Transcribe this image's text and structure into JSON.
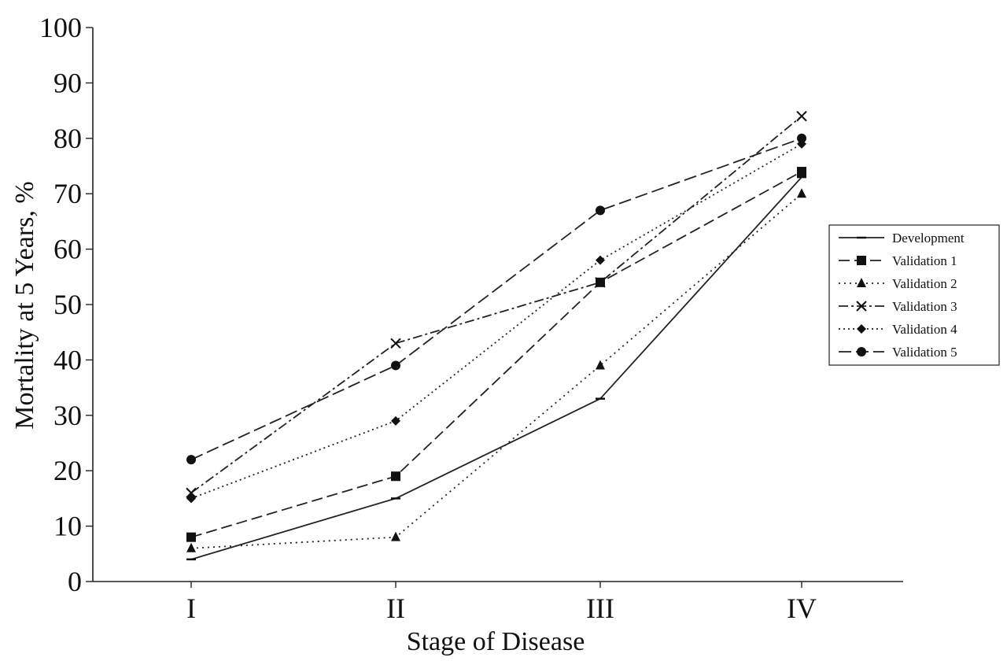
{
  "chart_data": {
    "type": "line",
    "categories": [
      "I",
      "II",
      "III",
      "IV"
    ],
    "xlabel": "Stage of Disease",
    "ylabel": "Mortality at 5 Years, %",
    "ylim": [
      0,
      100
    ],
    "yticks": [
      "0",
      "10",
      "20",
      "30",
      "40",
      "50",
      "60",
      "70",
      "80",
      "90",
      "100"
    ],
    "grid": false,
    "legend_position": "right",
    "series": [
      {
        "name": "Development",
        "values": [
          4,
          15,
          33,
          73
        ],
        "dash": "",
        "marker": "dash"
      },
      {
        "name": "Validation 1",
        "values": [
          8,
          19,
          54,
          74
        ],
        "dash": "14,6",
        "marker": "square"
      },
      {
        "name": "Validation 2",
        "values": [
          6,
          8,
          39,
          70
        ],
        "dash": "2,5",
        "marker": "triangle"
      },
      {
        "name": "Validation 3",
        "values": [
          16,
          43,
          54,
          84
        ],
        "dash": "12,4,3,4",
        "marker": "x"
      },
      {
        "name": "Validation 4",
        "values": [
          15,
          29,
          58,
          79
        ],
        "dash": "2,4",
        "marker": "diamond"
      },
      {
        "name": "Validation 5",
        "values": [
          22,
          39,
          67,
          80
        ],
        "dash": "16,6",
        "marker": "circle"
      }
    ]
  }
}
